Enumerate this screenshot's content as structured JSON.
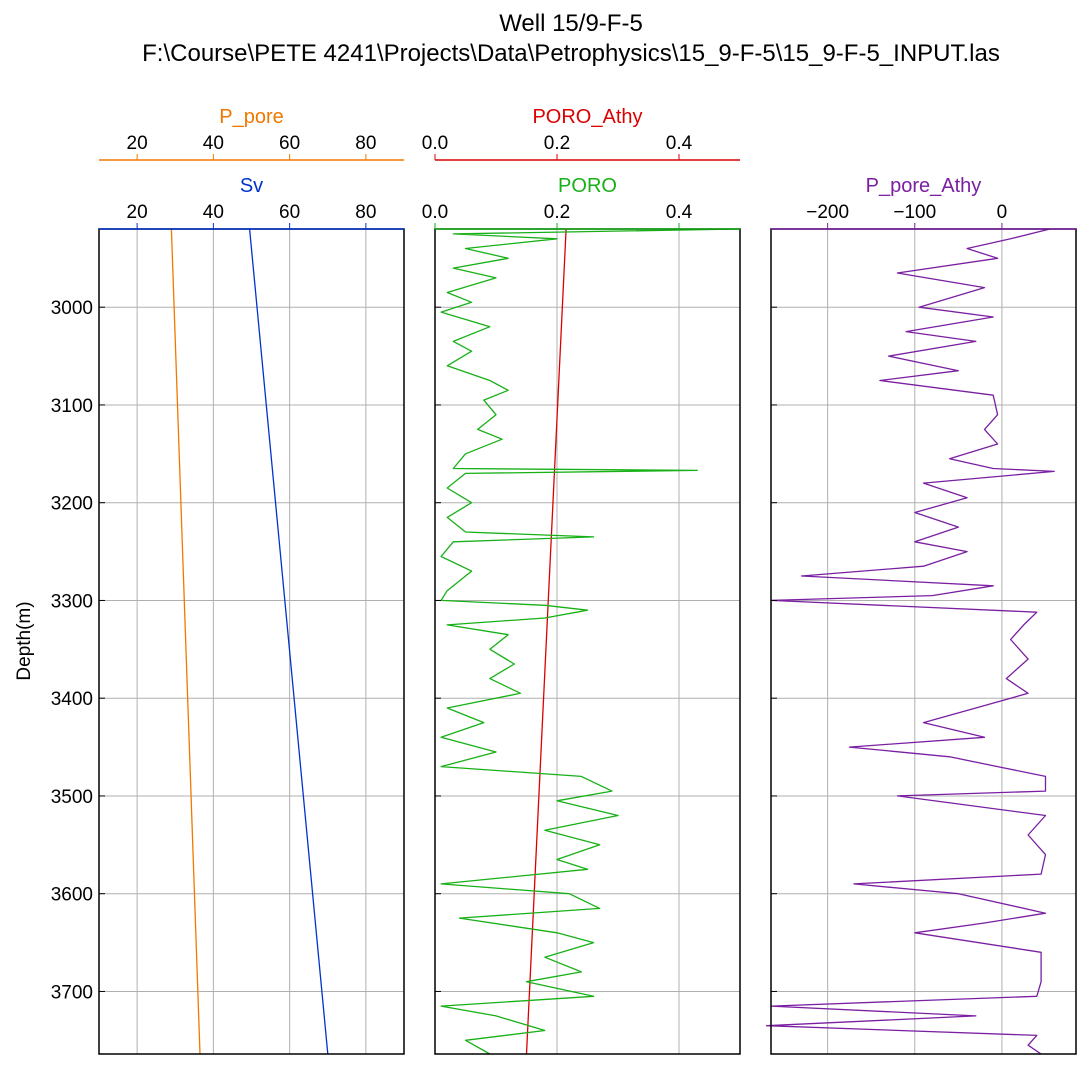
{
  "title": "Well 15/9-F-5",
  "subtitle": "F:\\Course\\PETE 4241\\Projects\\Data\\Petrophysics\\15_9-F-5\\15_9-F-5_INPUT.las",
  "chart_data": {
    "type": "line",
    "y_label": "Depth(m)",
    "y_range": [
      2920,
      3764
    ],
    "y_inverted": true,
    "y_ticks": [
      3000,
      3100,
      3200,
      3300,
      3400,
      3500,
      3600,
      3700
    ],
    "grid": true,
    "tracks": [
      {
        "axes": [
          {
            "name": "P_pore",
            "color": "#f07800",
            "range": [
              10,
              90
            ],
            "ticks": [
              "20",
              "40",
              "60",
              "80"
            ],
            "points": [
              [
                29,
                2920
              ],
              [
                36.5,
                3764
              ]
            ]
          },
          {
            "name": "Sv",
            "color": "#0033cc",
            "range": [
              10,
              90
            ],
            "ticks": [
              "20",
              "40",
              "60",
              "80"
            ],
            "points": [
              [
                49.5,
                2920
              ],
              [
                70,
                3764
              ]
            ]
          }
        ]
      },
      {
        "axes": [
          {
            "name": "PORO_Athy",
            "color": "#dd0000",
            "range": [
              0,
              0.5
            ],
            "ticks": [
              "0.0",
              "0.2",
              "0.4"
            ],
            "points": [
              [
                0.215,
                2920
              ],
              [
                0.15,
                3764
              ]
            ]
          },
          {
            "name": "PORO",
            "color": "#17b017",
            "range": [
              0,
              0.5
            ],
            "ticks": [
              "0.0",
              "0.2",
              "0.4"
            ],
            "points": [
              [
                0.5,
                2920
              ],
              [
                0.03,
                2925
              ],
              [
                0.2,
                2930
              ],
              [
                0.05,
                2940
              ],
              [
                0.12,
                2950
              ],
              [
                0.03,
                2960
              ],
              [
                0.1,
                2970
              ],
              [
                0.02,
                2985
              ],
              [
                0.06,
                2995
              ],
              [
                0.01,
                3005
              ],
              [
                0.09,
                3020
              ],
              [
                0.03,
                3035
              ],
              [
                0.06,
                3045
              ],
              [
                0.02,
                3060
              ],
              [
                0.09,
                3075
              ],
              [
                0.12,
                3085
              ],
              [
                0.08,
                3095
              ],
              [
                0.1,
                3110
              ],
              [
                0.07,
                3125
              ],
              [
                0.11,
                3135
              ],
              [
                0.05,
                3150
              ],
              [
                0.03,
                3165
              ],
              [
                0.43,
                3167
              ],
              [
                0.05,
                3170
              ],
              [
                0.02,
                3185
              ],
              [
                0.06,
                3200
              ],
              [
                0.02,
                3215
              ],
              [
                0.05,
                3230
              ],
              [
                0.26,
                3235
              ],
              [
                0.03,
                3240
              ],
              [
                0.01,
                3255
              ],
              [
                0.06,
                3270
              ],
              [
                0.02,
                3290
              ],
              [
                0.01,
                3300
              ],
              [
                0.18,
                3305
              ],
              [
                0.25,
                3310
              ],
              [
                0.18,
                3318
              ],
              [
                0.02,
                3325
              ],
              [
                0.12,
                3335
              ],
              [
                0.09,
                3350
              ],
              [
                0.13,
                3365
              ],
              [
                0.09,
                3380
              ],
              [
                0.14,
                3395
              ],
              [
                0.02,
                3410
              ],
              [
                0.08,
                3425
              ],
              [
                0.01,
                3440
              ],
              [
                0.1,
                3455
              ],
              [
                0.01,
                3470
              ],
              [
                0.24,
                3480
              ],
              [
                0.29,
                3495
              ],
              [
                0.2,
                3505
              ],
              [
                0.3,
                3520
              ],
              [
                0.18,
                3535
              ],
              [
                0.27,
                3550
              ],
              [
                0.2,
                3565
              ],
              [
                0.25,
                3575
              ],
              [
                0.01,
                3590
              ],
              [
                0.22,
                3600
              ],
              [
                0.27,
                3615
              ],
              [
                0.04,
                3625
              ],
              [
                0.2,
                3640
              ],
              [
                0.26,
                3650
              ],
              [
                0.18,
                3665
              ],
              [
                0.24,
                3680
              ],
              [
                0.15,
                3690
              ],
              [
                0.26,
                3705
              ],
              [
                0.01,
                3715
              ],
              [
                0.1,
                3725
              ],
              [
                0.18,
                3740
              ],
              [
                0.05,
                3750
              ],
              [
                0.09,
                3764
              ]
            ]
          }
        ]
      },
      {
        "axes": [
          {
            "name": "P_pore_Athy",
            "color": "#7a1fa2",
            "range": [
              -265,
              85
            ],
            "ticks": [
              "−200",
              "−100",
              "0"
            ],
            "points": [
              [
                55,
                2920
              ],
              [
                10,
                2930
              ],
              [
                -40,
                2940
              ],
              [
                -5,
                2950
              ],
              [
                -120,
                2965
              ],
              [
                -20,
                2980
              ],
              [
                -95,
                3000
              ],
              [
                -10,
                3010
              ],
              [
                -110,
                3025
              ],
              [
                -30,
                3035
              ],
              [
                -130,
                3050
              ],
              [
                -50,
                3065
              ],
              [
                -140,
                3075
              ],
              [
                -10,
                3090
              ],
              [
                -5,
                3110
              ],
              [
                -20,
                3125
              ],
              [
                -5,
                3140
              ],
              [
                -60,
                3155
              ],
              [
                -10,
                3165
              ],
              [
                60,
                3168
              ],
              [
                -90,
                3180
              ],
              [
                -40,
                3195
              ],
              [
                -100,
                3210
              ],
              [
                -50,
                3225
              ],
              [
                -100,
                3240
              ],
              [
                -40,
                3250
              ],
              [
                -90,
                3265
              ],
              [
                -230,
                3275
              ],
              [
                -10,
                3285
              ],
              [
                -80,
                3295
              ],
              [
                -265,
                3300
              ],
              [
                40,
                3312
              ],
              [
                25,
                3325
              ],
              [
                10,
                3340
              ],
              [
                30,
                3360
              ],
              [
                5,
                3380
              ],
              [
                30,
                3395
              ],
              [
                -30,
                3410
              ],
              [
                -90,
                3425
              ],
              [
                -20,
                3440
              ],
              [
                -175,
                3450
              ],
              [
                -60,
                3460
              ],
              [
                -5,
                3470
              ],
              [
                50,
                3480
              ],
              [
                50,
                3495
              ],
              [
                -120,
                3500
              ],
              [
                50,
                3520
              ],
              [
                30,
                3540
              ],
              [
                50,
                3560
              ],
              [
                45,
                3580
              ],
              [
                -170,
                3590
              ],
              [
                -50,
                3600
              ],
              [
                50,
                3620
              ],
              [
                -20,
                3630
              ],
              [
                -100,
                3640
              ],
              [
                45,
                3660
              ],
              [
                45,
                3690
              ],
              [
                40,
                3705
              ],
              [
                -265,
                3715
              ],
              [
                -30,
                3725
              ],
              [
                -270,
                3735
              ],
              [
                40,
                3745
              ],
              [
                30,
                3755
              ],
              [
                45,
                3764
              ]
            ]
          }
        ]
      }
    ]
  }
}
